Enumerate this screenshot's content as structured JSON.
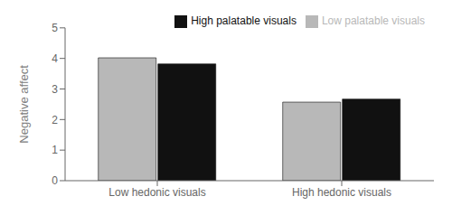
{
  "chart_data": {
    "type": "bar",
    "categories": [
      "Low hedonic visuals",
      "High hedonic visuals"
    ],
    "series": [
      {
        "name": "Low palatable visuals",
        "color": "#b8b8b8",
        "values": [
          4.02,
          2.57
        ]
      },
      {
        "name": "High palatable visuals",
        "color": "#111111",
        "values": [
          3.82,
          2.67
        ]
      }
    ],
    "ylabel": "Negative affect",
    "ylim": [
      0,
      5
    ],
    "yticks": [
      0,
      1,
      2,
      3,
      4,
      5
    ],
    "grid": false,
    "legend": "upper right"
  }
}
